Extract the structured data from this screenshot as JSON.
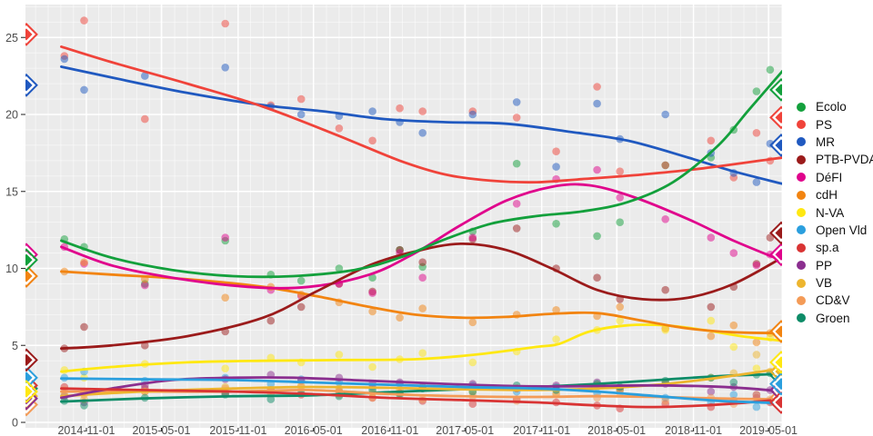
{
  "chart_data": {
    "type": "line",
    "title": "",
    "xlabel": "",
    "ylabel": "",
    "legend_position": "right",
    "grid": "on",
    "panel_bg": "#EBEBEB",
    "grid_major_color": "#FFFFFF",
    "grid_minor_color": "#FFFFFF",
    "axis_text_color": "#4d4d4d",
    "ylim": [
      -0.35,
      27.1
    ],
    "y_ticks": [
      0,
      5,
      10,
      15,
      20,
      25
    ],
    "y_tick_labels": [
      "0",
      "5",
      "10",
      "15",
      "20",
      "25"
    ],
    "x_ticks": [
      "2014-11-01",
      "2015-05-01",
      "2015-11-01",
      "2016-05-01",
      "2016-11-01",
      "2017-05-01",
      "2017-11-01",
      "2018-05-01",
      "2018-11-01",
      "2019-05-01"
    ],
    "x_tick_years": [
      2014.835,
      2015.329,
      2015.835,
      2016.331,
      2016.835,
      2017.329,
      2017.835,
      2018.329,
      2018.835,
      2019.329
    ],
    "x_range_years": [
      2014.434,
      2019.418
    ],
    "poll_times": [
      2014.69,
      2014.82,
      2015.22,
      2015.75,
      2016.05,
      2016.25,
      2016.5,
      2016.72,
      2016.9,
      2017.05,
      2017.38,
      2017.67,
      2017.93,
      2018.2,
      2018.35,
      2018.65,
      2018.95,
      2019.1,
      2019.25,
      2019.34
    ],
    "point_alpha": 0.5,
    "series": [
      {
        "name": "Ecolo",
        "color": "#13A03C",
        "trend": [
          [
            2014.67,
            11.8
          ],
          [
            2015.0,
            10.7
          ],
          [
            2015.4,
            9.9
          ],
          [
            2015.8,
            9.5
          ],
          [
            2016.2,
            9.5
          ],
          [
            2016.6,
            9.9
          ],
          [
            2016.9,
            10.7
          ],
          [
            2017.2,
            11.9
          ],
          [
            2017.5,
            12.9
          ],
          [
            2017.8,
            13.4
          ],
          [
            2018.1,
            13.7
          ],
          [
            2018.4,
            14.3
          ],
          [
            2018.7,
            15.6
          ],
          [
            2019.0,
            18.0
          ],
          [
            2019.2,
            20.3
          ],
          [
            2019.42,
            22.8
          ]
        ],
        "poll_values": [
          11.9,
          11.4,
          9.0,
          11.8,
          9.6,
          9.2,
          10.0,
          9.4,
          11.2,
          10.1,
          12.4,
          16.8,
          12.9,
          12.1,
          13.0,
          16.7,
          17.2,
          19.0,
          21.5,
          22.9
        ],
        "result_2014": 10.55,
        "result_2019": 21.6
      },
      {
        "name": "PS",
        "color": "#F0433A",
        "trend": [
          [
            2014.67,
            24.4
          ],
          [
            2015.0,
            23.4
          ],
          [
            2015.5,
            22.0
          ],
          [
            2016.0,
            20.5
          ],
          [
            2016.5,
            18.6
          ],
          [
            2016.9,
            17.0
          ],
          [
            2017.2,
            16.1
          ],
          [
            2017.5,
            15.7
          ],
          [
            2017.8,
            15.6
          ],
          [
            2018.1,
            15.8
          ],
          [
            2018.5,
            16.1
          ],
          [
            2018.9,
            16.5
          ],
          [
            2019.42,
            17.2
          ]
        ],
        "poll_values": [
          23.8,
          26.1,
          19.7,
          25.9,
          20.6,
          21.0,
          19.1,
          18.3,
          20.4,
          20.2,
          20.2,
          19.8,
          17.6,
          21.8,
          16.3,
          16.7,
          18.3,
          15.9,
          18.8,
          17.0
        ],
        "result_2014": 25.2,
        "result_2019": 19.8
      },
      {
        "name": "MR",
        "color": "#2059C0",
        "trend": [
          [
            2014.67,
            23.1
          ],
          [
            2015.0,
            22.4
          ],
          [
            2015.5,
            21.4
          ],
          [
            2016.0,
            20.6
          ],
          [
            2016.4,
            20.2
          ],
          [
            2016.8,
            19.7
          ],
          [
            2017.2,
            19.5
          ],
          [
            2017.6,
            19.4
          ],
          [
            2018.0,
            18.9
          ],
          [
            2018.4,
            18.3
          ],
          [
            2018.8,
            17.2
          ],
          [
            2019.1,
            16.3
          ],
          [
            2019.42,
            15.5
          ]
        ],
        "poll_values": [
          23.6,
          21.6,
          22.5,
          23.05,
          20.5,
          20.0,
          19.9,
          20.2,
          19.5,
          18.8,
          20.0,
          20.8,
          16.6,
          20.7,
          18.4,
          20.0,
          17.5,
          16.2,
          15.6,
          18.1
        ],
        "result_2014": 21.9,
        "result_2019": 18.0
      },
      {
        "name": "PTB-PVDA",
        "color": "#9B1B1B",
        "trend": [
          [
            2014.67,
            4.8
          ],
          [
            2015.0,
            5.0
          ],
          [
            2015.5,
            5.6
          ],
          [
            2016.0,
            6.8
          ],
          [
            2016.35,
            8.5
          ],
          [
            2016.7,
            10.2
          ],
          [
            2017.0,
            11.1
          ],
          [
            2017.3,
            11.6
          ],
          [
            2017.6,
            11.2
          ],
          [
            2017.9,
            10.0
          ],
          [
            2018.2,
            8.6
          ],
          [
            2018.5,
            8.0
          ],
          [
            2018.8,
            8.1
          ],
          [
            2019.1,
            9.0
          ],
          [
            2019.42,
            10.7
          ]
        ],
        "poll_values": [
          4.8,
          6.2,
          5.0,
          5.9,
          6.6,
          7.5,
          9.0,
          8.5,
          11.2,
          10.4,
          11.9,
          12.6,
          10.0,
          9.4,
          8.0,
          8.6,
          7.5,
          8.8,
          10.3,
          12.0
        ],
        "result_2014": 4.05,
        "result_2019": 12.3
      },
      {
        "name": "DéFI",
        "color": "#E0038C",
        "trend": [
          [
            2014.67,
            11.4
          ],
          [
            2015.0,
            10.2
          ],
          [
            2015.4,
            9.4
          ],
          [
            2015.9,
            8.8
          ],
          [
            2016.3,
            8.8
          ],
          [
            2016.7,
            9.6
          ],
          [
            2017.0,
            11.0
          ],
          [
            2017.3,
            12.8
          ],
          [
            2017.6,
            14.4
          ],
          [
            2017.9,
            15.3
          ],
          [
            2018.15,
            15.4
          ],
          [
            2018.45,
            14.6
          ],
          [
            2018.8,
            13.2
          ],
          [
            2019.1,
            11.8
          ],
          [
            2019.42,
            10.5
          ]
        ],
        "poll_values": [
          11.4,
          10.3,
          8.9,
          12.0,
          8.6,
          8.2,
          9.0,
          8.4,
          11.0,
          9.4,
          12.0,
          14.2,
          15.8,
          16.4,
          14.6,
          13.2,
          12.0,
          11.0,
          10.2,
          10.9
        ],
        "result_2014": 10.9,
        "result_2019": 10.9
      },
      {
        "name": "cdH",
        "color": "#F28411",
        "trend": [
          [
            2014.67,
            9.8
          ],
          [
            2015.0,
            9.6
          ],
          [
            2015.5,
            9.3
          ],
          [
            2016.0,
            8.8
          ],
          [
            2016.35,
            8.2
          ],
          [
            2016.7,
            7.5
          ],
          [
            2017.0,
            7.0
          ],
          [
            2017.3,
            6.8
          ],
          [
            2017.6,
            6.85
          ],
          [
            2017.9,
            7.05
          ],
          [
            2018.2,
            7.1
          ],
          [
            2018.5,
            6.6
          ],
          [
            2018.8,
            6.1
          ],
          [
            2019.1,
            5.85
          ],
          [
            2019.42,
            5.8
          ]
        ],
        "poll_values": [
          9.8,
          10.4,
          9.3,
          8.1,
          8.8,
          8.3,
          7.8,
          7.2,
          6.8,
          7.4,
          6.5,
          7.0,
          7.3,
          6.9,
          7.5,
          6.1,
          5.6,
          6.3,
          5.2,
          5.8
        ],
        "result_2014": 9.5,
        "result_2019": 5.9
      },
      {
        "name": "N-VA",
        "color": "#FFE812",
        "trend": [
          [
            2014.67,
            3.3
          ],
          [
            2015.0,
            3.6
          ],
          [
            2015.5,
            3.9
          ],
          [
            2016.0,
            4.0
          ],
          [
            2016.5,
            4.05
          ],
          [
            2017.0,
            4.1
          ],
          [
            2017.4,
            4.4
          ],
          [
            2017.8,
            4.9
          ],
          [
            2017.95,
            5.1
          ],
          [
            2018.15,
            5.9
          ],
          [
            2018.4,
            6.3
          ],
          [
            2018.65,
            6.3
          ],
          [
            2018.9,
            6.0
          ],
          [
            2019.15,
            5.6
          ],
          [
            2019.42,
            5.3
          ]
        ],
        "poll_values": [
          3.4,
          2.9,
          3.8,
          3.5,
          4.2,
          3.9,
          4.4,
          3.6,
          4.1,
          4.5,
          3.9,
          4.6,
          5.4,
          6.0,
          6.6,
          6.0,
          6.6,
          4.9,
          3.5,
          5.5
        ],
        "result_2014": 2.0,
        "result_2019": 3.9
      },
      {
        "name": "Open Vld",
        "color": "#2B9FDE",
        "trend": [
          [
            2014.67,
            2.85
          ],
          [
            2015.2,
            2.8
          ],
          [
            2015.8,
            2.75
          ],
          [
            2016.3,
            2.6
          ],
          [
            2016.8,
            2.45
          ],
          [
            2017.3,
            2.3
          ],
          [
            2017.8,
            2.2
          ],
          [
            2018.2,
            2.0
          ],
          [
            2018.6,
            1.7
          ],
          [
            2019.0,
            1.4
          ],
          [
            2019.42,
            1.25
          ]
        ],
        "poll_values": [
          2.9,
          3.3,
          2.7,
          2.9,
          2.5,
          2.8,
          2.6,
          2.3,
          2.5,
          2.2,
          2.4,
          2.0,
          2.3,
          1.9,
          2.1,
          1.6,
          1.3,
          1.8,
          1.0,
          1.4
        ],
        "result_2014": 2.9,
        "result_2019": 2.5
      },
      {
        "name": "sp.a",
        "color": "#D93434",
        "trend": [
          [
            2014.67,
            2.2
          ],
          [
            2015.2,
            2.1
          ],
          [
            2015.8,
            2.0
          ],
          [
            2016.3,
            1.85
          ],
          [
            2016.8,
            1.6
          ],
          [
            2017.3,
            1.45
          ],
          [
            2017.8,
            1.3
          ],
          [
            2018.2,
            1.1
          ],
          [
            2018.55,
            1.0
          ],
          [
            2018.9,
            1.1
          ],
          [
            2019.2,
            1.3
          ],
          [
            2019.42,
            1.5
          ]
        ],
        "poll_values": [
          2.3,
          2.0,
          2.2,
          1.9,
          2.1,
          1.8,
          2.0,
          1.6,
          1.9,
          1.4,
          1.2,
          1.5,
          1.3,
          1.1,
          0.9,
          1.2,
          1.0,
          1.4,
          1.6,
          1.3
        ],
        "result_2014": 2.4,
        "result_2019": 1.3
      },
      {
        "name": "PP",
        "color": "#8B2F8F",
        "trend": [
          [
            2014.67,
            1.6
          ],
          [
            2015.0,
            2.2
          ],
          [
            2015.4,
            2.75
          ],
          [
            2015.8,
            2.9
          ],
          [
            2016.2,
            2.9
          ],
          [
            2016.7,
            2.7
          ],
          [
            2017.2,
            2.5
          ],
          [
            2017.7,
            2.35
          ],
          [
            2018.1,
            2.35
          ],
          [
            2018.5,
            2.4
          ],
          [
            2018.9,
            2.35
          ],
          [
            2019.2,
            2.2
          ],
          [
            2019.42,
            2.0
          ]
        ],
        "poll_values": [
          1.7,
          1.3,
          2.4,
          2.8,
          3.1,
          2.7,
          2.9,
          2.5,
          2.6,
          2.3,
          2.5,
          2.2,
          2.4,
          2.6,
          2.2,
          2.5,
          2.0,
          2.3,
          1.8,
          2.1
        ],
        "result_2014": 1.55,
        "result_2019": 2.1
      },
      {
        "name": "VB",
        "color": "#EDB52F",
        "trend": [
          [
            2014.67,
            1.7
          ],
          [
            2015.2,
            2.0
          ],
          [
            2015.8,
            2.2
          ],
          [
            2016.3,
            2.3
          ],
          [
            2016.8,
            2.25
          ],
          [
            2017.3,
            2.15
          ],
          [
            2017.8,
            2.1
          ],
          [
            2018.2,
            2.2
          ],
          [
            2018.6,
            2.45
          ],
          [
            2019.0,
            2.9
          ],
          [
            2019.42,
            3.5
          ]
        ],
        "poll_values": [
          1.8,
          1.5,
          2.0,
          2.3,
          2.1,
          2.4,
          2.2,
          1.9,
          2.1,
          2.3,
          2.0,
          2.2,
          1.9,
          2.4,
          2.1,
          2.6,
          2.9,
          3.2,
          4.4,
          3.3
        ],
        "result_2014": 1.7,
        "result_2019": 3.3
      },
      {
        "name": "CD&V",
        "color": "#F49B57",
        "trend": [
          [
            2014.67,
            2.0
          ],
          [
            2015.2,
            2.0
          ],
          [
            2015.8,
            2.0
          ],
          [
            2016.3,
            2.1
          ],
          [
            2016.8,
            1.85
          ],
          [
            2017.3,
            1.7
          ],
          [
            2017.8,
            1.65
          ],
          [
            2018.2,
            1.7
          ],
          [
            2018.6,
            1.65
          ],
          [
            2019.0,
            1.55
          ],
          [
            2019.42,
            1.5
          ]
        ],
        "poll_values": [
          2.1,
          1.8,
          2.0,
          2.2,
          1.9,
          2.3,
          1.8,
          1.6,
          1.9,
          1.5,
          1.7,
          1.4,
          1.8,
          1.6,
          1.9,
          1.4,
          1.6,
          1.2,
          1.8,
          1.5
        ],
        "result_2014": 1.15,
        "result_2019": 1.6
      },
      {
        "name": "Groen",
        "color": "#0E8C68",
        "trend": [
          [
            2014.67,
            1.35
          ],
          [
            2015.2,
            1.55
          ],
          [
            2015.8,
            1.7
          ],
          [
            2016.3,
            1.75
          ],
          [
            2016.8,
            1.95
          ],
          [
            2017.3,
            2.15
          ],
          [
            2017.8,
            2.3
          ],
          [
            2018.2,
            2.5
          ],
          [
            2018.6,
            2.75
          ],
          [
            2019.0,
            3.0
          ],
          [
            2019.42,
            3.15
          ]
        ],
        "poll_values": [
          1.4,
          1.1,
          1.6,
          1.8,
          1.5,
          1.9,
          1.7,
          2.1,
          1.8,
          2.2,
          2.0,
          2.4,
          2.1,
          2.5,
          2.3,
          2.7,
          2.9,
          2.6,
          3.1,
          3.2
        ],
        "result_2014": 2.2,
        "result_2019": 3.05
      }
    ]
  }
}
